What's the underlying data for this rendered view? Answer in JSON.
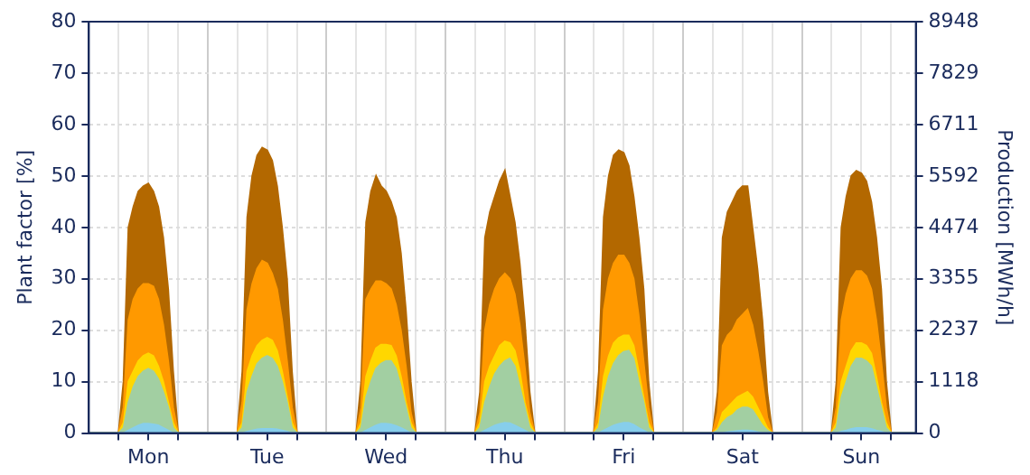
{
  "chart_data": {
    "type": "area",
    "ylabel": "Plant factor [%]",
    "y2label": "Production [MWh/h]",
    "categories": [
      null,
      null,
      null,
      null,
      null,
      null,
      null,
      null,
      null,
      null,
      null,
      null,
      "Mon",
      null,
      null,
      null,
      null,
      null,
      null,
      null,
      null,
      null,
      null,
      null,
      null,
      null,
      null,
      null,
      null,
      null,
      null,
      null,
      null,
      null,
      null,
      null,
      "Tue",
      null,
      null,
      null,
      null,
      null,
      null,
      null,
      null,
      null,
      null,
      null,
      null,
      null,
      null,
      null,
      null,
      null,
      null,
      null,
      null,
      null,
      null,
      null,
      "Wed",
      null,
      null,
      null,
      null,
      null,
      null,
      null,
      null,
      null,
      null,
      null,
      null,
      null,
      null,
      null,
      null,
      null,
      null,
      null,
      null,
      null,
      null,
      null,
      "Thu",
      null,
      null,
      null,
      null,
      null,
      null,
      null,
      null,
      null,
      null,
      null,
      null,
      null,
      null,
      null,
      null,
      null,
      null,
      null,
      null,
      null,
      null,
      null,
      "Fri",
      null,
      null,
      null,
      null,
      null,
      null,
      null,
      null,
      null,
      null,
      null,
      null,
      null,
      null,
      null,
      null,
      null,
      null,
      null,
      null,
      null,
      null,
      null,
      "Sat",
      null,
      null,
      null,
      null,
      null,
      null,
      null,
      null,
      null,
      null,
      null,
      null,
      null,
      null,
      null,
      null,
      null,
      null,
      null,
      null,
      null,
      null,
      null,
      "Sun",
      null,
      null,
      null,
      null,
      null,
      null,
      null,
      null,
      null,
      null,
      null
    ],
    "ylim": [
      0,
      80
    ],
    "yticks": [
      0,
      10,
      20,
      30,
      40,
      50,
      60,
      70,
      80
    ],
    "y2lim": [
      0,
      8948
    ],
    "y2ticks": [
      0,
      1118,
      2237,
      3355,
      4474,
      5592,
      6711,
      7829,
      8948
    ],
    "grid": true,
    "series": [
      {
        "color": "#87ceeb",
        "values": [
          0,
          0,
          0,
          0,
          0,
          0,
          0,
          0,
          0.5,
          1,
          1.5,
          1.8,
          1.8,
          1.7,
          1.5,
          1,
          0.5,
          0,
          0,
          0,
          0,
          0,
          0,
          0,
          0,
          0,
          0,
          0,
          0,
          0,
          0,
          0,
          0.3,
          0.5,
          0.7,
          0.8,
          0.8,
          0.8,
          0.7,
          0.5,
          0.3,
          0,
          0,
          0,
          0,
          0,
          0,
          0,
          0,
          0,
          0,
          0,
          0,
          0,
          0,
          0,
          0.5,
          1,
          1.5,
          1.8,
          1.8,
          1.7,
          1.4,
          1,
          0.5,
          0,
          0,
          0,
          0,
          0,
          0,
          0,
          0,
          0,
          0,
          0,
          0,
          0,
          0,
          0,
          0.5,
          1,
          1.5,
          1.8,
          2,
          1.9,
          1.5,
          1,
          0.5,
          0,
          0,
          0,
          0,
          0,
          0,
          0,
          0,
          0,
          0,
          0,
          0,
          0,
          0,
          0,
          0.5,
          1,
          1.5,
          1.8,
          2,
          2,
          1.6,
          1,
          0.5,
          0,
          0,
          0,
          0,
          0,
          0,
          0,
          0,
          0,
          0,
          0,
          0,
          0,
          0,
          0,
          0,
          0.2,
          0.3,
          0.4,
          0.5,
          0.5,
          0.4,
          0.2,
          0,
          0,
          0,
          0,
          0,
          0,
          0,
          0,
          0,
          0,
          0,
          0,
          0,
          0,
          0,
          0,
          0.3,
          0.5,
          0.8,
          1,
          1,
          1,
          0.8,
          0.5,
          0.3,
          0,
          0,
          0,
          0,
          0,
          0,
          0
        ]
      },
      {
        "color": "#a2cfa2",
        "values": [
          0,
          0,
          0,
          0,
          0,
          0,
          0,
          1,
          6,
          9,
          11,
          12,
          12.5,
          12,
          10.5,
          8,
          5,
          1,
          0,
          0,
          0,
          0,
          0,
          0,
          0,
          0,
          0,
          0,
          0,
          0,
          0,
          1,
          8,
          11,
          13.5,
          14.5,
          15,
          14.5,
          13,
          10,
          6,
          1,
          0,
          0,
          0,
          0,
          0,
          0,
          0,
          0,
          0,
          0,
          0,
          0,
          0,
          1,
          7,
          10,
          12.5,
          13.5,
          14,
          14,
          12.5,
          9,
          5,
          1,
          0,
          0,
          0,
          0,
          0,
          0,
          0,
          0,
          0,
          0,
          0,
          0,
          0,
          1,
          6,
          9,
          11.5,
          13,
          14,
          14.5,
          13,
          9,
          5,
          1,
          0,
          0,
          0,
          0,
          0,
          0,
          0,
          0,
          0,
          0,
          0,
          0,
          0,
          1,
          7,
          11,
          13.5,
          15,
          15.8,
          16,
          14.5,
          10,
          6,
          1,
          0,
          0,
          0,
          0,
          0,
          0,
          0,
          0,
          0,
          0,
          0,
          0,
          0,
          0.5,
          2,
          3,
          3.5,
          4.5,
          5,
          5,
          4.5,
          3,
          1.5,
          0.5,
          0,
          0,
          0,
          0,
          0,
          0,
          0,
          0,
          0,
          0,
          0,
          0,
          0,
          1,
          7,
          10,
          13,
          14.5,
          14.5,
          14,
          13,
          9,
          5,
          1,
          0,
          0,
          0,
          0,
          0,
          0
        ]
      },
      {
        "color": "#ffd700",
        "values": [
          0,
          0,
          0,
          0,
          0,
          0,
          0,
          2,
          10,
          12,
          14,
          15,
          15.5,
          15,
          13,
          10,
          6,
          2,
          0,
          0,
          0,
          0,
          0,
          0,
          0,
          0,
          0,
          0,
          0,
          0,
          0,
          2,
          12,
          15,
          17,
          18,
          18.5,
          18,
          16,
          12,
          7,
          2,
          0,
          0,
          0,
          0,
          0,
          0,
          0,
          0,
          0,
          0,
          0,
          0,
          0,
          2,
          11,
          14,
          16.5,
          17.2,
          17.2,
          17,
          15,
          11,
          6,
          2,
          0,
          0,
          0,
          0,
          0,
          0,
          0,
          0,
          0,
          0,
          0,
          0,
          0,
          2,
          10,
          13,
          15,
          17,
          17.8,
          17.5,
          16,
          12,
          6,
          2,
          0,
          0,
          0,
          0,
          0,
          0,
          0,
          0,
          0,
          0,
          0,
          0,
          0,
          2,
          11,
          15,
          17.5,
          18.5,
          19,
          19,
          17,
          12,
          7,
          2,
          0,
          0,
          0,
          0,
          0,
          0,
          0,
          0,
          0,
          0,
          0,
          0,
          0,
          1,
          4,
          5,
          6,
          7,
          7.5,
          8,
          7,
          5,
          3,
          1,
          0,
          0,
          0,
          0,
          0,
          0,
          0,
          0,
          0,
          0,
          0,
          0,
          0,
          2,
          10,
          13,
          16,
          17.5,
          17.5,
          17,
          15.5,
          11,
          6,
          2,
          0,
          0,
          0,
          0,
          0,
          0
        ]
      },
      {
        "color": "#ff9900",
        "values": [
          0,
          0,
          0,
          0,
          0,
          0,
          0,
          5,
          22,
          26,
          28,
          29,
          29,
          28.5,
          26,
          21,
          14,
          5,
          0,
          0,
          0,
          0,
          0,
          0,
          0,
          0,
          0,
          0,
          0,
          0,
          0,
          6,
          24,
          29,
          32,
          33.5,
          33,
          31,
          28,
          22,
          14,
          5,
          0,
          0,
          0,
          0,
          0,
          0,
          0,
          0,
          0,
          0,
          0,
          0,
          0,
          5,
          26,
          28,
          29.5,
          29.5,
          29,
          28,
          25,
          20,
          13,
          4,
          0,
          0,
          0,
          0,
          0,
          0,
          0,
          0,
          0,
          0,
          0,
          0,
          0,
          4,
          20,
          25,
          28,
          30,
          31,
          30,
          27,
          21,
          13,
          4,
          0,
          0,
          0,
          0,
          0,
          0,
          0,
          0,
          0,
          0,
          0,
          0,
          0,
          6,
          24,
          30,
          33,
          34.5,
          34.5,
          33,
          30,
          23,
          14,
          5,
          0,
          0,
          0,
          0,
          0,
          0,
          0,
          0,
          0,
          0,
          0,
          0,
          0,
          4,
          17,
          19,
          20,
          22,
          23,
          24,
          21,
          16,
          10,
          3,
          0,
          0,
          0,
          0,
          0,
          0,
          0,
          0,
          0,
          0,
          0,
          0,
          0,
          5,
          22,
          27,
          30,
          31.5,
          31.5,
          30.5,
          28,
          22,
          14,
          5,
          0,
          0,
          0,
          0,
          0,
          0
        ]
      },
      {
        "color": "#b36800",
        "values": [
          0,
          0,
          0,
          0,
          0,
          0,
          0,
          10,
          40,
          44,
          47,
          48,
          48.5,
          47,
          44,
          38,
          28,
          12,
          0,
          0,
          0,
          0,
          0,
          0,
          0,
          0,
          0,
          0,
          0,
          0,
          0,
          12,
          42,
          50,
          54,
          55.5,
          55,
          53,
          48,
          40,
          30,
          12,
          0,
          0,
          0,
          0,
          0,
          0,
          0,
          0,
          0,
          0,
          0,
          0,
          0,
          10,
          41,
          47,
          50,
          48,
          47,
          45,
          42,
          35,
          24,
          10,
          0,
          0,
          0,
          0,
          0,
          0,
          0,
          0,
          0,
          0,
          0,
          0,
          0,
          8,
          38,
          43,
          46,
          49,
          51,
          46,
          41,
          33,
          22,
          8,
          0,
          0,
          0,
          0,
          0,
          0,
          0,
          0,
          0,
          0,
          0,
          0,
          0,
          12,
          42,
          50,
          54,
          55,
          54.5,
          52,
          46,
          38,
          28,
          10,
          0,
          0,
          0,
          0,
          0,
          0,
          0,
          0,
          0,
          0,
          0,
          0,
          0,
          8,
          38,
          43,
          45,
          47,
          48,
          48,
          40,
          32,
          22,
          8,
          0,
          0,
          0,
          0,
          0,
          0,
          0,
          0,
          0,
          0,
          0,
          0,
          0,
          10,
          40,
          46,
          50,
          51,
          50.5,
          49,
          45,
          38,
          28,
          10,
          0,
          0,
          0,
          0,
          0,
          0
        ]
      }
    ]
  }
}
